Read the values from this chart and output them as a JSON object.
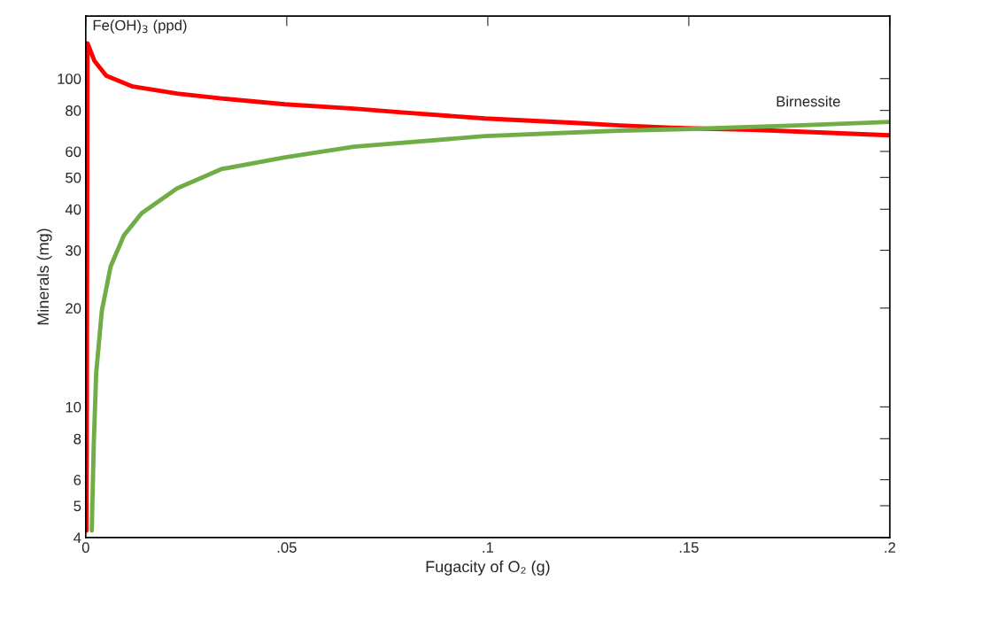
{
  "chart_data": {
    "type": "line",
    "xlabel": "Fugacity of O₂ (g)",
    "ylabel": "Minerals (mg)",
    "log": "y",
    "xlim": [
      0,
      0.2
    ],
    "ylim": [
      4,
      155
    ],
    "xticks": [
      0,
      {
        "value": 0.05,
        "label": ".05"
      },
      {
        "value": 0.1,
        "label": ".1"
      },
      {
        "value": 0.15,
        "label": ".15"
      },
      {
        "value": 0.2,
        "label": ".2"
      }
    ],
    "yticks": [
      4,
      5,
      6,
      8,
      10,
      20,
      30,
      40,
      50,
      60,
      80,
      100
    ],
    "grid": false,
    "legend": false,
    "marker": "none",
    "line_style": "solid",
    "series": [
      {
        "name": "Fe(OH)$_{3}$ (ppd)",
        "color": "#ff0000",
        "x": [
          0.0002,
          0.00044,
          0.0022,
          0.0051,
          0.0117,
          0.0227,
          0.0337,
          0.0496,
          0.0667,
          0.0778,
          0.0993,
          0.1218,
          0.1328,
          0.1493,
          0.1659,
          0.1769,
          0.2
        ],
        "values": [
          4.2,
          128,
          113,
          102,
          94.6,
          90,
          87,
          83.5,
          81,
          79,
          75.6,
          73.3,
          72,
          70.6,
          69.8,
          69,
          67.2
        ]
      },
      {
        "name": "Birnessite",
        "color": "#70ad47",
        "x": [
          0.0015,
          0.002,
          0.0026,
          0.004,
          0.0062,
          0.0095,
          0.0139,
          0.0227,
          0.0337,
          0.0496,
          0.0667,
          0.0993,
          0.1328,
          0.1493,
          0.1769,
          0.2
        ],
        "values": [
          4.2,
          7.75,
          12.7,
          19.6,
          26.8,
          33.3,
          38.9,
          46.3,
          53,
          57.6,
          62,
          66.8,
          69.4,
          70.2,
          72,
          73.8
        ]
      }
    ]
  }
}
